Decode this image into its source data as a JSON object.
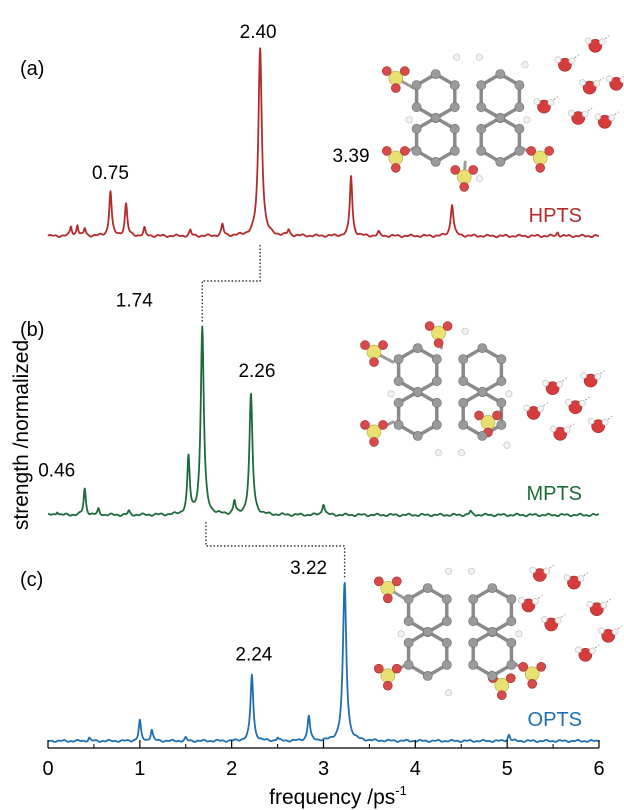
{
  "chart_data": {
    "type": "line",
    "xlabel": "frequency /ps",
    "xlabel_sup": "-1",
    "ylabel": "strength /normalized",
    "xlim": [
      0,
      6
    ],
    "x_ticks": [
      "0",
      "1",
      "2",
      "3",
      "4",
      "5",
      "6"
    ],
    "grid": false,
    "panels": [
      {
        "panel_label": "(a)",
        "name": "HPTS",
        "color": "#b52a2a",
        "annotations": [
          {
            "x": 0.75,
            "label": "0.75"
          },
          {
            "x": 2.4,
            "label": "2.40"
          },
          {
            "x": 3.39,
            "label": "3.39"
          }
        ],
        "peaks": [
          {
            "x": 0.25,
            "h": 0.05,
            "w": 0.012
          },
          {
            "x": 0.32,
            "h": 0.06,
            "w": 0.012
          },
          {
            "x": 0.4,
            "h": 0.04,
            "w": 0.012
          },
          {
            "x": 0.68,
            "h": 0.24,
            "w": 0.016
          },
          {
            "x": 0.85,
            "h": 0.17,
            "w": 0.016
          },
          {
            "x": 1.05,
            "h": 0.04,
            "w": 0.012
          },
          {
            "x": 1.55,
            "h": 0.03,
            "w": 0.012
          },
          {
            "x": 1.9,
            "h": 0.06,
            "w": 0.014
          },
          {
            "x": 2.31,
            "h": 1.0,
            "w": 0.022
          },
          {
            "x": 2.62,
            "h": 0.03,
            "w": 0.014
          },
          {
            "x": 3.3,
            "h": 0.32,
            "w": 0.016
          },
          {
            "x": 3.6,
            "h": 0.02,
            "w": 0.014
          },
          {
            "x": 4.4,
            "h": 0.17,
            "w": 0.018
          },
          {
            "x": 5.55,
            "h": 0.02,
            "w": 0.012
          }
        ]
      },
      {
        "panel_label": "(b)",
        "name": "MPTS",
        "color": "#1d6b3a",
        "annotations": [
          {
            "x": 0.46,
            "label": "0.46"
          },
          {
            "x": 1.74,
            "label": "1.74"
          },
          {
            "x": 2.26,
            "label": "2.26"
          }
        ],
        "peaks": [
          {
            "x": 0.1,
            "h": 0.02,
            "w": 0.012
          },
          {
            "x": 0.4,
            "h": 0.14,
            "w": 0.014
          },
          {
            "x": 0.55,
            "h": 0.03,
            "w": 0.012
          },
          {
            "x": 0.88,
            "h": 0.02,
            "w": 0.012
          },
          {
            "x": 1.53,
            "h": 0.3,
            "w": 0.016
          },
          {
            "x": 1.68,
            "h": 1.0,
            "w": 0.02
          },
          {
            "x": 2.03,
            "h": 0.07,
            "w": 0.014
          },
          {
            "x": 2.21,
            "h": 0.64,
            "w": 0.02
          },
          {
            "x": 3.0,
            "h": 0.06,
            "w": 0.016
          },
          {
            "x": 4.6,
            "h": 0.02,
            "w": 0.014
          }
        ]
      },
      {
        "panel_label": "(c)",
        "name": "OPTS",
        "color": "#1f6fb0",
        "annotations": [
          {
            "x": 2.24,
            "label": "2.24"
          },
          {
            "x": 3.22,
            "label": "3.22"
          }
        ],
        "peaks": [
          {
            "x": 0.45,
            "h": 0.02,
            "w": 0.012
          },
          {
            "x": 1.0,
            "h": 0.13,
            "w": 0.014
          },
          {
            "x": 1.13,
            "h": 0.07,
            "w": 0.014
          },
          {
            "x": 1.5,
            "h": 0.02,
            "w": 0.012
          },
          {
            "x": 2.22,
            "h": 0.42,
            "w": 0.018
          },
          {
            "x": 2.5,
            "h": 0.02,
            "w": 0.012
          },
          {
            "x": 2.84,
            "h": 0.16,
            "w": 0.016
          },
          {
            "x": 3.23,
            "h": 1.0,
            "w": 0.022
          },
          {
            "x": 5.02,
            "h": 0.04,
            "w": 0.014
          }
        ]
      }
    ]
  }
}
